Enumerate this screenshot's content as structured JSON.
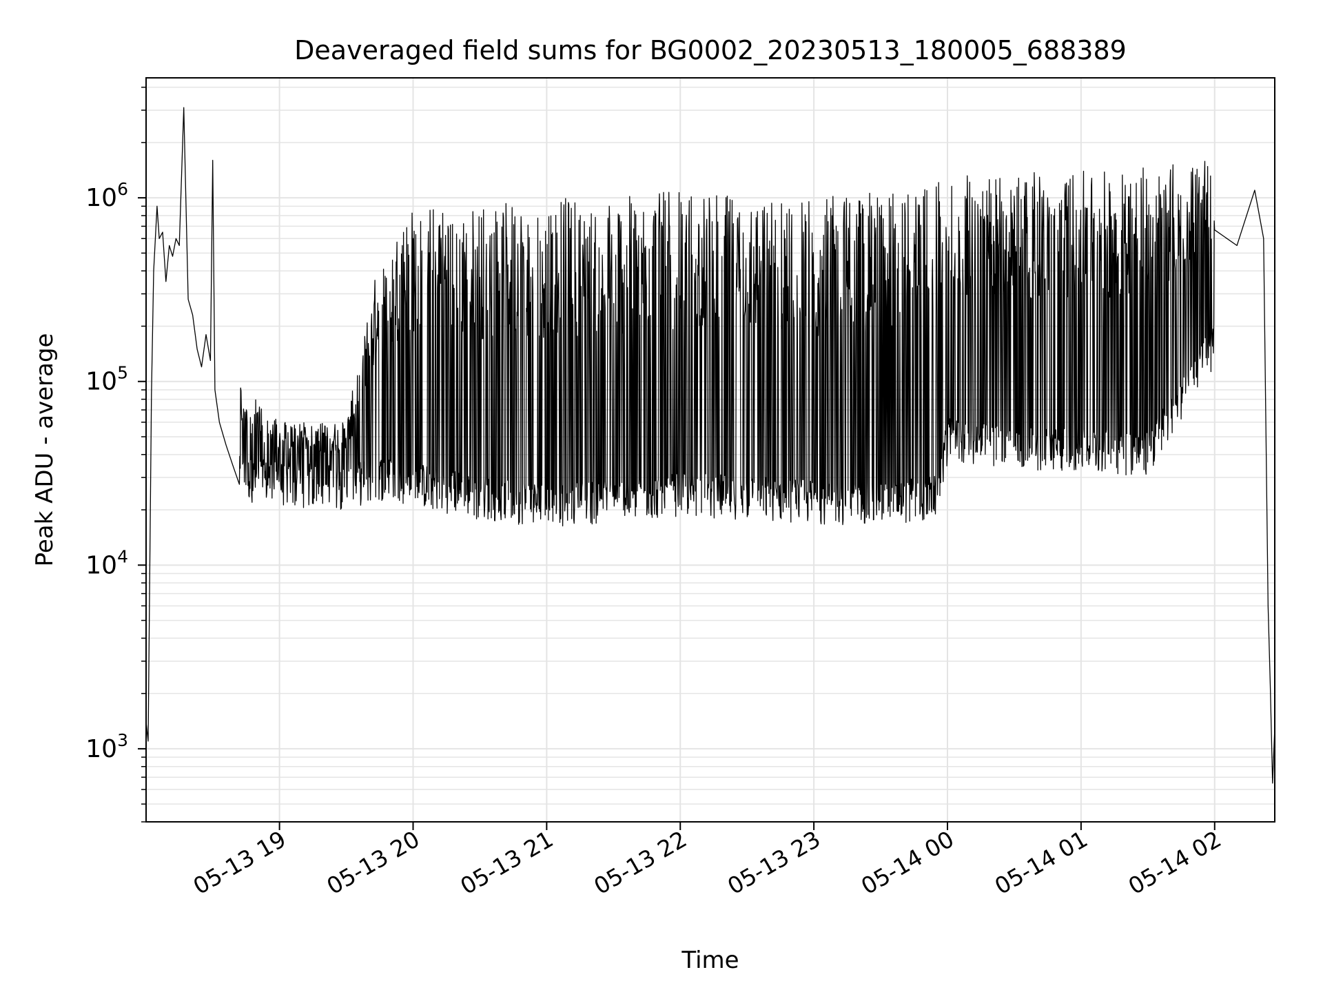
{
  "chart_data": {
    "type": "line",
    "title": "Deaveraged field sums for BG0002_20230513_180005_688389",
    "xlabel": "Time",
    "ylabel": "Peak ADU - average",
    "xlim": [
      "2023-05-13 18:00:05",
      "2023-05-14 02:27:00"
    ],
    "ylim": [
      400,
      4500000
    ],
    "yscale": "log",
    "grid": true,
    "x_ticks": [
      {
        "value": "2023-05-13 19:00",
        "label": "05-13 19"
      },
      {
        "value": "2023-05-13 20:00",
        "label": "05-13 20"
      },
      {
        "value": "2023-05-13 21:00",
        "label": "05-13 21"
      },
      {
        "value": "2023-05-13 22:00",
        "label": "05-13 22"
      },
      {
        "value": "2023-05-13 23:00",
        "label": "05-13 23"
      },
      {
        "value": "2023-05-14 00:00",
        "label": "05-14 00"
      },
      {
        "value": "2023-05-14 01:00",
        "label": "05-14 01"
      },
      {
        "value": "2023-05-14 02:00",
        "label": "05-14 02"
      }
    ],
    "y_ticks": [
      {
        "value": 1000,
        "base": "10",
        "exp": "3"
      },
      {
        "value": 10000,
        "base": "10",
        "exp": "4"
      },
      {
        "value": 100000,
        "base": "10",
        "exp": "5"
      },
      {
        "value": 1000000,
        "base": "10",
        "exp": "6"
      }
    ],
    "series": [
      {
        "color": "#000000",
        "x": [
          "2023-05-13 18:00:05",
          "2023-05-13 18:01:00",
          "2023-05-13 18:02:30",
          "2023-05-13 18:03:30",
          "2023-05-13 18:05:00",
          "2023-05-13 18:06:00",
          "2023-05-13 18:07:30",
          "2023-05-13 18:09:00",
          "2023-05-13 18:10:30",
          "2023-05-13 18:12:00",
          "2023-05-13 18:13:30",
          "2023-05-13 18:15:00",
          "2023-05-13 18:17:00",
          "2023-05-13 18:19:00",
          "2023-05-13 18:21:00",
          "2023-05-13 18:23:00",
          "2023-05-13 18:25:00",
          "2023-05-13 18:27:00",
          "2023-05-13 18:29:00",
          "2023-05-13 18:30:00",
          "2023-05-13 18:31:00",
          "2023-05-13 18:33:00",
          "2023-05-13 18:36:00",
          "2023-05-13 18:39:00",
          "2023-05-13 18:42:00",
          "2023-05-13 18:45:00",
          "2023-05-13 18:48:00",
          "2023-05-13 18:51:00",
          "2023-05-13 18:54:00",
          "2023-05-13 18:57:00",
          "2023-05-13 19:00:00",
          "2023-05-13 19:10:00",
          "2023-05-13 19:20:00",
          "2023-05-13 19:30:00",
          "2023-05-13 19:40:00",
          "2023-05-13 19:50:00",
          "2023-05-13 20:00:00",
          "2023-05-13 20:30:00",
          "2023-05-13 21:00:00",
          "2023-05-13 21:30:00",
          "2023-05-13 22:00:00",
          "2023-05-13 22:30:00",
          "2023-05-13 23:00:00",
          "2023-05-13 23:30:00",
          "2023-05-14 00:00:00",
          "2023-05-14 00:30:00",
          "2023-05-14 01:00:00",
          "2023-05-14 01:30:00",
          "2023-05-14 02:00:00",
          "2023-05-14 02:10:00",
          "2023-05-14 02:18:00",
          "2023-05-14 02:22:00",
          "2023-05-14 02:24:00",
          "2023-05-14 02:25:00",
          "2023-05-14 02:26:00",
          "2023-05-14 02:27:00"
        ],
        "y": [
          1400,
          1100,
          85000,
          400000,
          900000,
          600000,
          650000,
          350000,
          550000,
          480000,
          600000,
          550000,
          3100000,
          280000,
          230000,
          150000,
          120000,
          180000,
          130000,
          1600000,
          90000,
          60000,
          45000,
          35000,
          30000,
          28000,
          30000,
          27000,
          28000,
          25000,
          28000,
          30000,
          30000,
          33000,
          35000,
          40000,
          35000,
          1200000,
          30000,
          1300000,
          30000,
          1300000,
          30000,
          1300000,
          45000,
          1400000,
          40000,
          1500000,
          1600000,
          550000,
          1100000,
          600000,
          6000,
          2200,
          650,
          1300
        ]
      }
    ],
    "oscillation": {
      "note": "dense rapid oscillation between low and high envelopes",
      "x": [
        "2023-05-13 18:42:00",
        "2023-05-13 19:00:00",
        "2023-05-13 19:30:00",
        "2023-05-13 19:45:00",
        "2023-05-13 20:00:00",
        "2023-05-13 20:30:00",
        "2023-05-13 21:00:00",
        "2023-05-13 21:30:00",
        "2023-05-13 22:00:00",
        "2023-05-13 22:30:00",
        "2023-05-13 23:00:00",
        "2023-05-13 23:30:00",
        "2023-05-13 23:55:00",
        "2023-05-14 00:00:00",
        "2023-05-14 00:30:00",
        "2023-05-14 01:00:00",
        "2023-05-14 01:30:00",
        "2023-05-14 02:00:00"
      ],
      "low": [
        28000,
        26000,
        25000,
        28000,
        26000,
        22000,
        20000,
        21000,
        23000,
        22000,
        21000,
        20000,
        22000,
        45000,
        40000,
        40000,
        38000,
        150000
      ],
      "high": [
        100000,
        60000,
        60000,
        500000,
        900000,
        900000,
        1000000,
        1000000,
        1100000,
        1000000,
        1000000,
        1100000,
        1200000,
        1300000,
        1400000,
        1400000,
        1500000,
        1600000
      ]
    }
  }
}
